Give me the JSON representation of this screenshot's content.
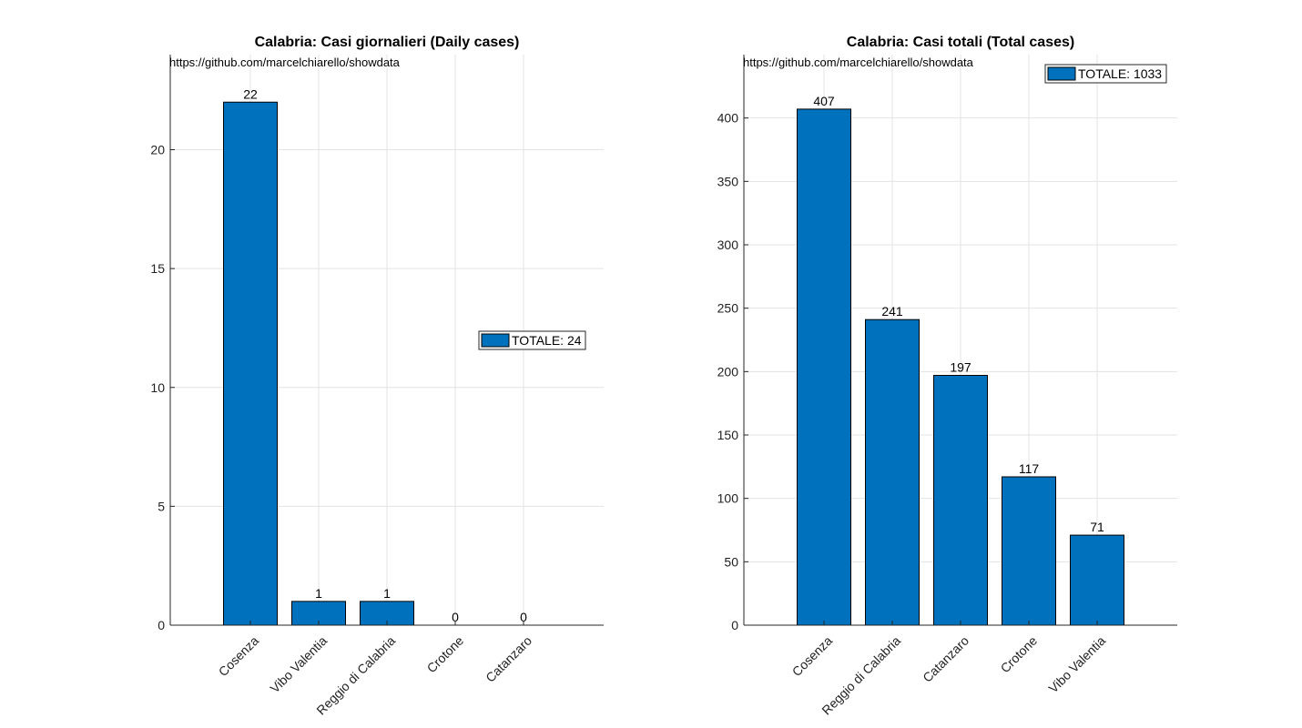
{
  "colors": {
    "bar": "#0072BD",
    "bar_edge": "#000000",
    "grid": "#e3e3e3",
    "axis": "#262626"
  },
  "chart_data": [
    {
      "type": "bar",
      "title": "Calabria: Casi giornalieri (Daily cases)",
      "source": "https://github.com/marcelchiarello/showdata",
      "categories": [
        "Cosenza",
        "Vibo Valentia",
        "Reggio di Calabria",
        "Crotone",
        "Catanzaro"
      ],
      "values": [
        22,
        1,
        1,
        0,
        0
      ],
      "ylim": [
        0,
        24
      ],
      "yticks": [
        0,
        5,
        10,
        15,
        20
      ],
      "legend": {
        "label": "TOTALE: 24",
        "placement": "center-right"
      },
      "grid": true
    },
    {
      "type": "bar",
      "title": "Calabria: Casi totali (Total cases)",
      "source": "https://github.com/marcelchiarello/showdata",
      "categories": [
        "Cosenza",
        "Reggio di Calabria",
        "Catanzaro",
        "Crotone",
        "Vibo Valentia"
      ],
      "values": [
        407,
        241,
        197,
        117,
        71
      ],
      "ylim": [
        0,
        450
      ],
      "yticks": [
        0,
        50,
        100,
        150,
        200,
        250,
        300,
        350,
        400
      ],
      "legend": {
        "label": "TOTALE: 1033",
        "placement": "top-right"
      },
      "grid": true
    }
  ]
}
